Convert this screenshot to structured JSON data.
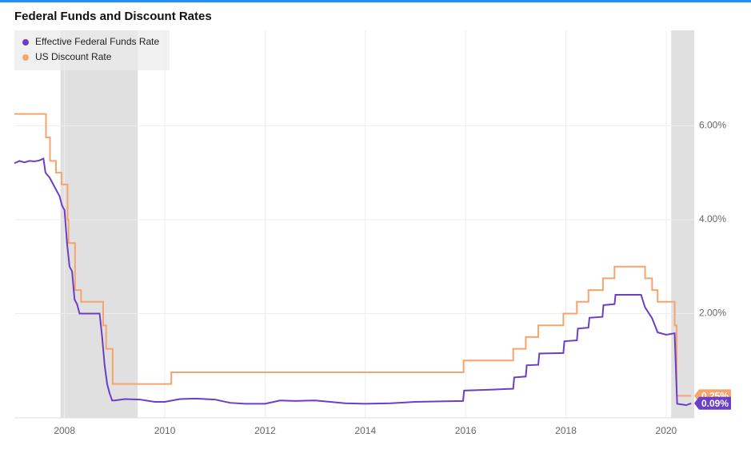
{
  "chart_data": {
    "type": "line",
    "title": "Federal Funds and Discount Rates",
    "xlim": [
      2007.0,
      2020.56
    ],
    "xticks": [
      2008,
      2010,
      2012,
      2014,
      2016,
      2018,
      2020
    ],
    "ylim": [
      -0.22,
      8.03
    ],
    "yticks": [
      {
        "value": 2,
        "label": "2.00%"
      },
      {
        "value": 4,
        "label": "4.00%"
      },
      {
        "value": 6,
        "label": "6.00%"
      }
    ],
    "grid": true,
    "legend": "top-left",
    "recessions": [
      [
        2007.92,
        2009.46
      ],
      [
        2020.1,
        2020.56
      ]
    ],
    "series": [
      {
        "name": "Effective Federal Funds Rate",
        "color": "#6a3fc8",
        "x": [
          2007.0,
          2007.1,
          2007.2,
          2007.3,
          2007.4,
          2007.5,
          2007.58,
          2007.62,
          2007.7,
          2007.75,
          2007.8,
          2007.85,
          2007.9,
          2007.95,
          2008.0,
          2008.05,
          2008.1,
          2008.15,
          2008.2,
          2008.25,
          2008.3,
          2008.4,
          2008.5,
          2008.6,
          2008.7,
          2008.75,
          2008.8,
          2008.85,
          2008.9,
          2008.95,
          2009.0,
          2009.2,
          2009.5,
          2009.8,
          2010.0,
          2010.3,
          2010.6,
          2011.0,
          2011.3,
          2011.6,
          2012.0,
          2012.3,
          2012.6,
          2013.0,
          2013.3,
          2013.6,
          2014.0,
          2014.5,
          2015.0,
          2015.5,
          2015.95,
          2015.97,
          2016.5,
          2016.95,
          2016.97,
          2017.2,
          2017.22,
          2017.45,
          2017.47,
          2017.95,
          2017.97,
          2018.22,
          2018.24,
          2018.45,
          2018.47,
          2018.73,
          2018.75,
          2018.97,
          2018.99,
          2019.5,
          2019.58,
          2019.72,
          2019.83,
          2020.0,
          2020.17,
          2020.2,
          2020.22,
          2020.4,
          2020.5
        ],
        "values": [
          5.2,
          5.25,
          5.22,
          5.25,
          5.24,
          5.26,
          5.3,
          5.0,
          4.9,
          4.8,
          4.7,
          4.6,
          4.5,
          4.3,
          4.2,
          3.5,
          3.0,
          2.9,
          2.3,
          2.2,
          2.0,
          2.0,
          2.0,
          2.0,
          2.0,
          1.5,
          0.9,
          0.5,
          0.3,
          0.15,
          0.15,
          0.18,
          0.17,
          0.12,
          0.12,
          0.18,
          0.19,
          0.17,
          0.1,
          0.08,
          0.08,
          0.15,
          0.14,
          0.15,
          0.12,
          0.09,
          0.08,
          0.09,
          0.12,
          0.13,
          0.14,
          0.36,
          0.38,
          0.4,
          0.64,
          0.66,
          0.9,
          0.91,
          1.15,
          1.16,
          1.41,
          1.43,
          1.68,
          1.7,
          1.91,
          1.93,
          2.18,
          2.2,
          2.4,
          2.4,
          2.13,
          1.9,
          1.6,
          1.55,
          1.58,
          0.65,
          0.08,
          0.05,
          0.09
        ],
        "value_labels": [
          null,
          null,
          null,
          null,
          null,
          null,
          null,
          null,
          null,
          null,
          null,
          null,
          null,
          null,
          null,
          null,
          null,
          null,
          null,
          null,
          null,
          null,
          null,
          null,
          null,
          null,
          null,
          null,
          null,
          null,
          null,
          null,
          null,
          null,
          null,
          null,
          null,
          null,
          null,
          null,
          null,
          null,
          null,
          null,
          null,
          null,
          null,
          null,
          null,
          null,
          null,
          null,
          null,
          null,
          null,
          null,
          null,
          null,
          null,
          null,
          null,
          null,
          null,
          null,
          null,
          null,
          null,
          null,
          null,
          null,
          null,
          null,
          null,
          null,
          null,
          null,
          null,
          null,
          "0.09%"
        ]
      },
      {
        "name": "US Discount Rate",
        "color": "#f5a46c",
        "x": [
          2007.0,
          2007.63,
          2007.63,
          2007.71,
          2007.71,
          2007.83,
          2007.83,
          2007.94,
          2007.94,
          2008.06,
          2008.06,
          2008.08,
          2008.08,
          2008.21,
          2008.21,
          2008.33,
          2008.33,
          2008.77,
          2008.77,
          2008.83,
          2008.83,
          2008.96,
          2008.96,
          2010.13,
          2010.13,
          2015.96,
          2015.96,
          2016.95,
          2016.95,
          2017.2,
          2017.2,
          2017.45,
          2017.45,
          2017.95,
          2017.95,
          2018.22,
          2018.22,
          2018.45,
          2018.45,
          2018.74,
          2018.74,
          2018.97,
          2018.97,
          2019.58,
          2019.58,
          2019.72,
          2019.72,
          2019.83,
          2019.83,
          2020.17,
          2020.17,
          2020.21,
          2020.21,
          2020.5
        ],
        "values": [
          6.25,
          6.25,
          5.75,
          5.75,
          5.25,
          5.25,
          5.0,
          5.0,
          4.75,
          4.75,
          4.0,
          4.0,
          3.5,
          3.5,
          2.5,
          2.5,
          2.25,
          2.25,
          1.75,
          1.75,
          1.25,
          1.25,
          0.5,
          0.5,
          0.75,
          0.75,
          1.0,
          1.0,
          1.25,
          1.25,
          1.5,
          1.5,
          1.75,
          1.75,
          2.0,
          2.0,
          2.25,
          2.25,
          2.5,
          2.5,
          2.75,
          2.75,
          3.0,
          3.0,
          2.75,
          2.75,
          2.5,
          2.5,
          2.25,
          2.25,
          1.75,
          1.75,
          0.25,
          0.25
        ],
        "value_labels": [
          null,
          null,
          null,
          null,
          null,
          null,
          null,
          null,
          null,
          null,
          null,
          null,
          null,
          null,
          null,
          null,
          null,
          null,
          null,
          null,
          null,
          null,
          null,
          null,
          null,
          null,
          null,
          null,
          null,
          null,
          null,
          null,
          null,
          null,
          null,
          null,
          null,
          null,
          null,
          null,
          null,
          null,
          null,
          null,
          null,
          null,
          null,
          null,
          null,
          null,
          null,
          null,
          null,
          "0.25%"
        ]
      }
    ]
  }
}
